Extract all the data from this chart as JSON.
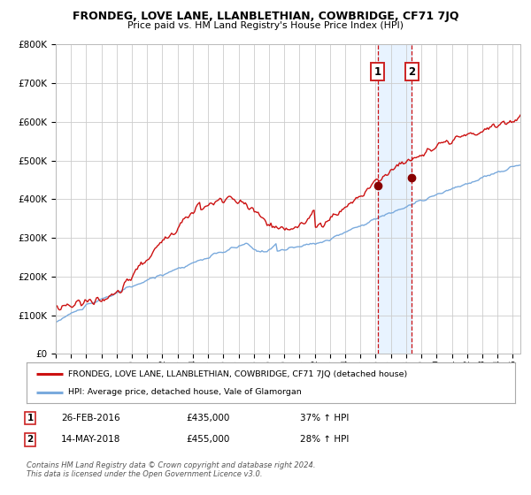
{
  "title": "FRONDEG, LOVE LANE, LLANBLETHIAN, COWBRIDGE, CF71 7JQ",
  "subtitle": "Price paid vs. HM Land Registry's House Price Index (HPI)",
  "legend_line1": "FRONDEG, LOVE LANE, LLANBLETHIAN, COWBRIDGE, CF71 7JQ (detached house)",
  "legend_line2": "HPI: Average price, detached house, Vale of Glamorgan",
  "sale1_date": "26-FEB-2016",
  "sale1_price": 435000,
  "sale1_hpi": "37% ↑ HPI",
  "sale2_date": "14-MAY-2018",
  "sale2_price": 455000,
  "sale2_hpi": "28% ↑ HPI",
  "sale1_year": 2016.12,
  "sale2_year": 2018.37,
  "hpi_color": "#7aaadd",
  "price_color": "#cc1111",
  "marker_color": "#880000",
  "vline_color": "#cc1111",
  "shade_color": "#ddeeff",
  "grid_color": "#cccccc",
  "background_color": "#ffffff",
  "ylim": [
    0,
    800000
  ],
  "xlim_start": 1995.0,
  "xlim_end": 2025.5,
  "footer": "Contains HM Land Registry data © Crown copyright and database right 2024.\nThis data is licensed under the Open Government Licence v3.0."
}
